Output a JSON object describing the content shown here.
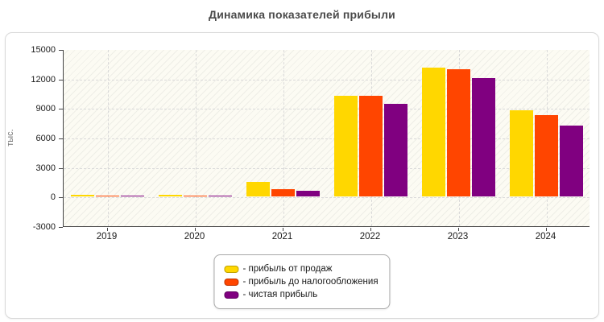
{
  "title": "Динамика показателей прибыли",
  "chart_data": {
    "type": "bar",
    "title": "Динамика показателей прибыли",
    "xlabel": "",
    "ylabel": "тыс.",
    "categories": [
      "2019",
      "2020",
      "2021",
      "2022",
      "2023",
      "2024"
    ],
    "y_ticks": [
      15000,
      12000,
      9000,
      6000,
      3000,
      0,
      -3000
    ],
    "ylim": [
      -3000,
      15000
    ],
    "grid": true,
    "legend_position": "bottom-center",
    "series": [
      {
        "name": "прибыль от продаж",
        "legend_label": "- прибыль от продаж",
        "color": "#FFD700",
        "values": [
          150,
          150,
          1500,
          10250,
          13150,
          8800
        ]
      },
      {
        "name": "прибыль до налогообложения",
        "legend_label": "- прибыль до налогообложения",
        "color": "#FF4500",
        "values": [
          130,
          130,
          800,
          10250,
          12950,
          8250
        ]
      },
      {
        "name": "чистая прибыль",
        "legend_label": "- чистая прибыль",
        "color": "#800080",
        "values": [
          110,
          110,
          600,
          9400,
          12050,
          7250
        ]
      }
    ]
  },
  "colors": {
    "title_text": "#4a4a4a",
    "axis_line": "#444444",
    "grid_line": "#d9d9d9",
    "plot_background": "#fcfbf3",
    "panel_border": "#d9d9d9"
  }
}
